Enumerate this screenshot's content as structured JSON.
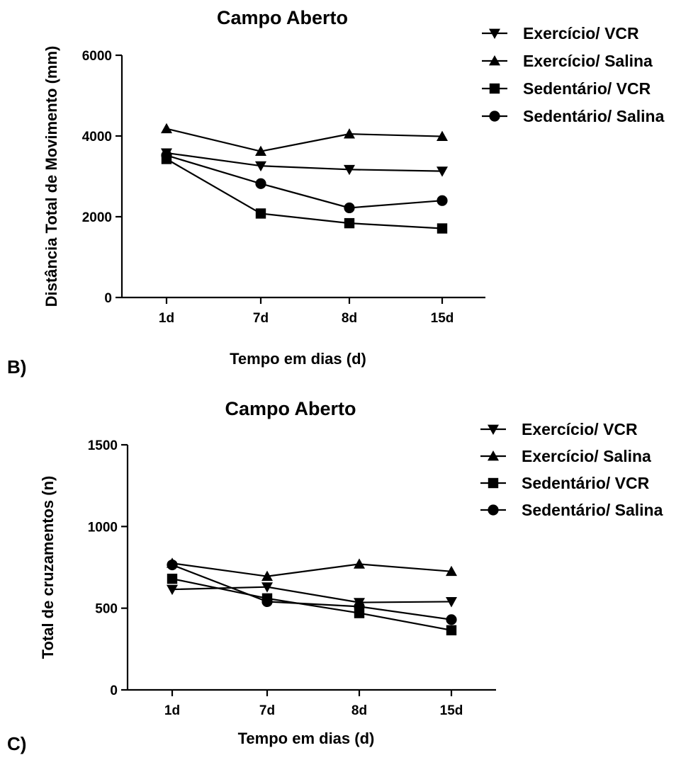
{
  "panel_labels": [
    "B)",
    "C)"
  ],
  "chart_data": [
    {
      "type": "line",
      "title": "Campo Aberto",
      "xlabel": "Tempo em dias (d)",
      "ylabel": "Distância Total de Movimento (mm)",
      "categories": [
        "1d",
        "7d",
        "8d",
        "15d"
      ],
      "ylim": [
        0,
        6000
      ],
      "yticks": [
        0,
        2000,
        4000,
        6000
      ],
      "grid": false,
      "legend_position": "top-right",
      "series": [
        {
          "name": "Exercício/ VCR",
          "marker": "triangle-down",
          "values": [
            3580,
            3260,
            3170,
            3130
          ]
        },
        {
          "name": "Exercício/ Salina",
          "marker": "triangle-up",
          "values": [
            4180,
            3620,
            4050,
            3990
          ]
        },
        {
          "name": "Sedentário/ VCR",
          "marker": "square",
          "values": [
            3430,
            2080,
            1840,
            1710
          ]
        },
        {
          "name": "Sedentário/ Salina",
          "marker": "circle",
          "values": [
            3520,
            2820,
            2220,
            2400
          ]
        }
      ]
    },
    {
      "type": "line",
      "title": "Campo Aberto",
      "xlabel": "Tempo em dias (d)",
      "ylabel": "Total de cruzamentos (n)",
      "categories": [
        "1d",
        "7d",
        "8d",
        "15d"
      ],
      "ylim": [
        0,
        1500
      ],
      "yticks": [
        0,
        500,
        1000,
        1500
      ],
      "grid": false,
      "legend_position": "top-right",
      "series": [
        {
          "name": "Exercício/ VCR",
          "marker": "triangle-down",
          "values": [
            615,
            630,
            535,
            540
          ]
        },
        {
          "name": "Exercício/ Salina",
          "marker": "triangle-up",
          "values": [
            775,
            695,
            770,
            725
          ]
        },
        {
          "name": "Sedentário/ VCR",
          "marker": "square",
          "values": [
            680,
            560,
            470,
            365
          ]
        },
        {
          "name": "Sedentário/ Salina",
          "marker": "circle",
          "values": [
            765,
            540,
            510,
            430
          ]
        }
      ]
    }
  ]
}
